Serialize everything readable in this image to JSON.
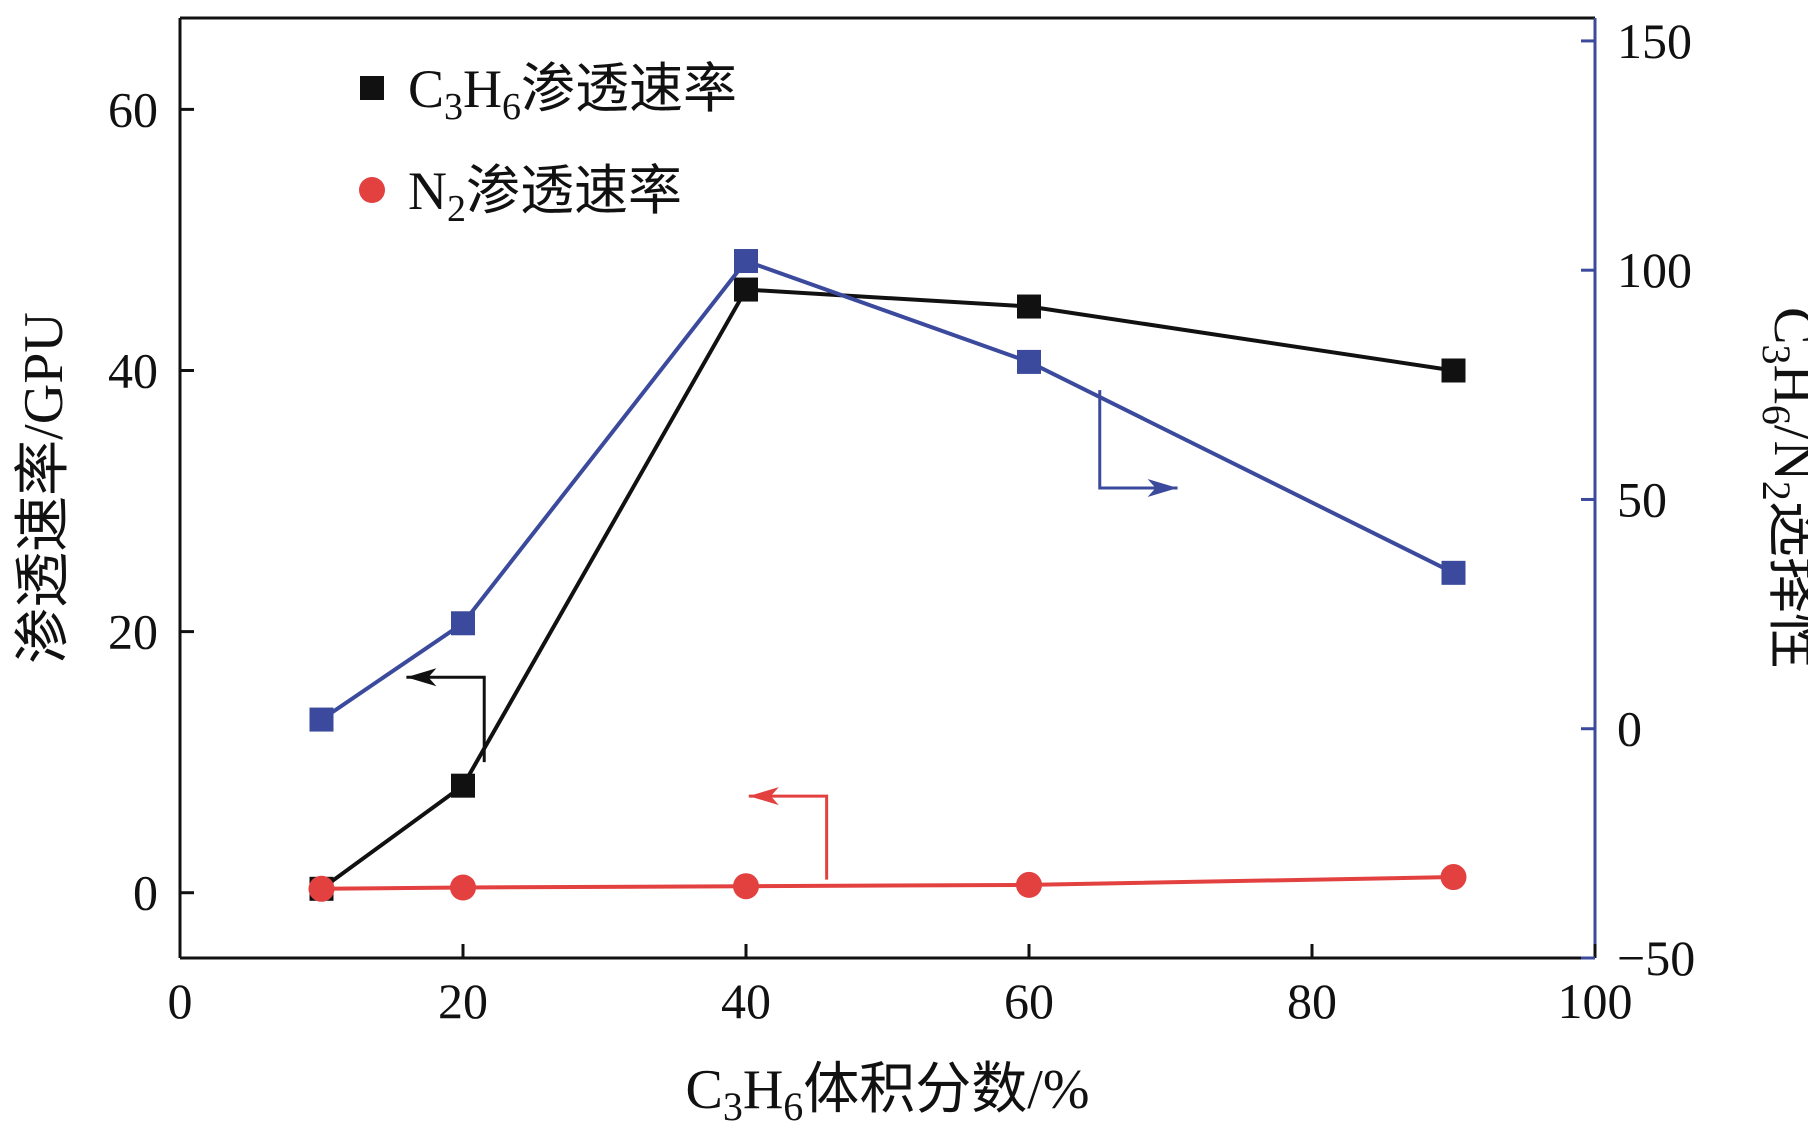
{
  "chart_data": {
    "type": "line",
    "xlabel": "C₃H₆体积分数/%",
    "ylabel_left": "渗透速率/GPU",
    "ylabel_right": "C₃H₆/N₂选择性",
    "xlim": [
      0,
      100
    ],
    "ylim_left": [
      -5,
      67
    ],
    "ylim_right": [
      -50,
      155
    ],
    "x_ticks": [
      0,
      20,
      40,
      60,
      80,
      100
    ],
    "y_left_ticks": [
      0,
      20,
      40,
      60
    ],
    "y_right_ticks": [
      -50,
      0,
      50,
      100,
      150
    ],
    "series": [
      {
        "name": "C₃H₆渗透速率",
        "axis": "left",
        "marker": "square",
        "color": "#111111",
        "x": [
          10,
          20,
          40,
          60,
          90
        ],
        "y": [
          0.3,
          8.2,
          46.2,
          44.9,
          40.0
        ]
      },
      {
        "name": "N₂渗透速率",
        "axis": "left",
        "marker": "circle",
        "color": "#e34040",
        "x": [
          10,
          20,
          40,
          60,
          90
        ],
        "y": [
          0.3,
          0.4,
          0.5,
          0.6,
          1.2
        ]
      },
      {
        "axis": "right",
        "marker": "square",
        "color": "#3b4a9c",
        "x": [
          10,
          20,
          40,
          60,
          90
        ],
        "y": [
          2,
          23,
          102,
          80,
          34
        ]
      }
    ],
    "legend_position": "top-left",
    "grid": false
  }
}
